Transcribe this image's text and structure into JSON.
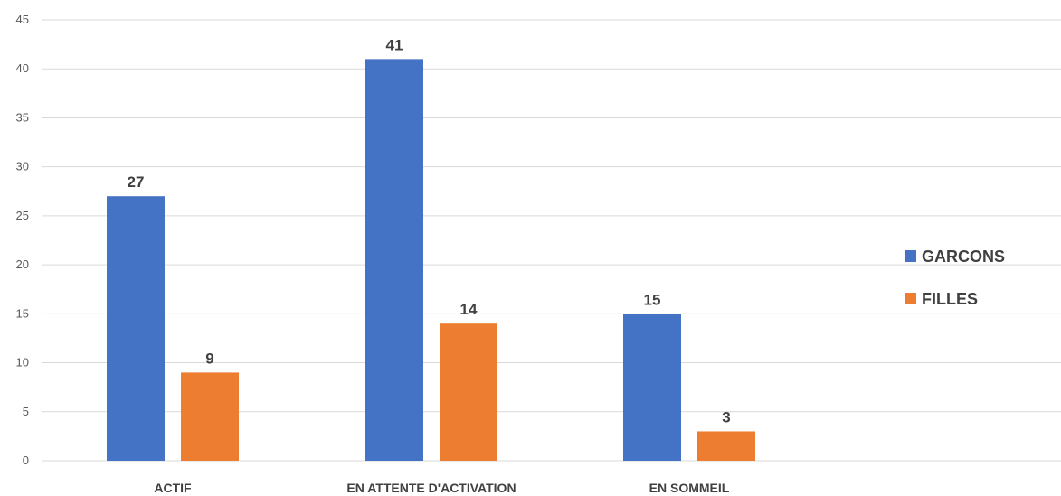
{
  "chart_data": {
    "type": "bar",
    "categories": [
      "ACTIF",
      "EN ATTENTE D'ACTIVATION",
      "EN SOMMEIL"
    ],
    "series": [
      {
        "name": "GARCONS",
        "values": [
          27,
          41,
          15
        ],
        "color": "#4472C4"
      },
      {
        "name": "FILLES",
        "values": [
          9,
          14,
          3
        ],
        "color": "#ED7D31"
      }
    ],
    "ylim": [
      0,
      45
    ],
    "yticks": [
      0,
      5,
      10,
      15,
      20,
      25,
      30,
      35,
      40,
      45
    ],
    "grid": true,
    "legend": "right",
    "data_labels": true,
    "gridline_color": "#d9d9d9",
    "text_color": "#404040"
  }
}
